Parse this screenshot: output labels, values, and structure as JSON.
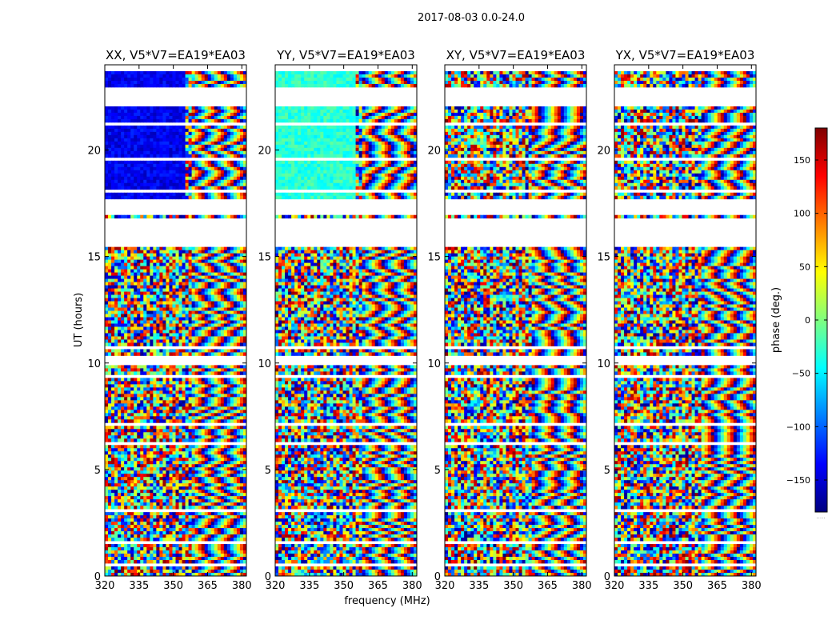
{
  "chart_data": {
    "type": "heatmap",
    "title": "2017-08-03 0.0-24.0",
    "xlabel": "frequency (MHz)",
    "ylabel": "UT (hours)",
    "xlim": [
      320,
      382
    ],
    "ylim": [
      0,
      24
    ],
    "x_ticks": [
      320,
      335,
      350,
      365,
      380
    ],
    "y_ticks": [
      0,
      5,
      10,
      15,
      20
    ],
    "panels": [
      {
        "name": "XX",
        "title": "XX, V5*V7=EA19*EA03",
        "base_hue": -140
      },
      {
        "name": "YY",
        "title": "YY, V5*V7=EA19*EA03",
        "base_hue": -30
      },
      {
        "name": "XY",
        "title": "XY, V5*V7=EA19*EA03",
        "base_hue": null
      },
      {
        "name": "YX",
        "title": "YX, V5*V7=EA19*EA03",
        "base_hue": null
      }
    ],
    "flagged_ut_ranges": [
      [
        23.7,
        24.0
      ],
      [
        22.0,
        22.95
      ],
      [
        21.1,
        21.25
      ],
      [
        19.45,
        19.6
      ],
      [
        18.85,
        18.95
      ],
      [
        17.95,
        18.1
      ],
      [
        17.6,
        17.75
      ],
      [
        17.15,
        17.5
      ],
      [
        16.95,
        17.05
      ],
      [
        15.4,
        16.8
      ],
      [
        10.65,
        10.75
      ],
      [
        9.9,
        10.4
      ],
      [
        9.3,
        9.4
      ],
      [
        8.2,
        8.3
      ],
      [
        7.05,
        7.2
      ],
      [
        6.15,
        6.25
      ],
      [
        5.35,
        5.45
      ],
      [
        3.9,
        3.95
      ],
      [
        3.05,
        3.15
      ],
      [
        2.95,
        3.0
      ],
      [
        1.5,
        1.6
      ],
      [
        0.5,
        0.55
      ]
    ],
    "colorbar": {
      "label": "phase (deg.)",
      "range": [
        -180,
        180
      ],
      "ticks": [
        150,
        100,
        50,
        0,
        -50,
        -100,
        -150
      ],
      "tick_labels": [
        "150",
        "100",
        "50",
        "0",
        "−50",
        "−100",
        "−150"
      ],
      "colormap": "jet",
      "footer": "....."
    }
  }
}
